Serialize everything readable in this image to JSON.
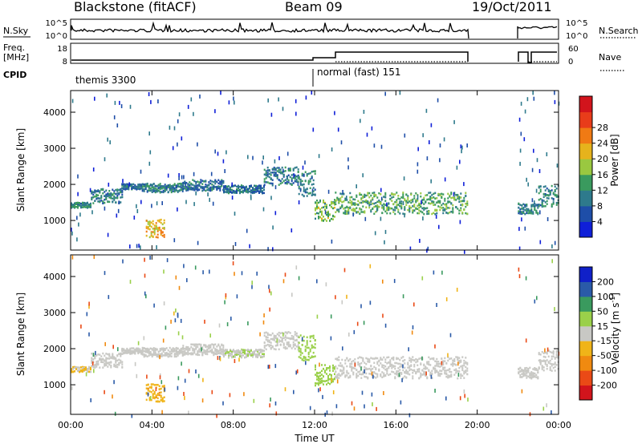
{
  "header": {
    "station": "Blackstone (fitACF)",
    "beam": "Beam 09",
    "date": "19/Oct/2011"
  },
  "side_labels": {
    "nsky": "N.Sky",
    "freq_line1": "Freq.",
    "freq_line2": "[MHz]",
    "cpid": "CPID",
    "nsearch": "N.Search",
    "nave": "Nave"
  },
  "small_axes": {
    "noise_left_ticks": [
      "10^5",
      "10^0"
    ],
    "noise_right_ticks": [
      "10^5",
      "10^0"
    ],
    "freq_left_ticks": [
      "18",
      "8"
    ],
    "freq_right_ticks": [
      "60",
      "0"
    ]
  },
  "cpid_labels": [
    {
      "text": "themis 3300",
      "start_hour": 0.0
    },
    {
      "text": "normal (fast) 151",
      "start_hour": 12.0
    }
  ],
  "colors": {
    "power": [
      "#0f1fd8",
      "#1e4ea8",
      "#2e7a8c",
      "#3a9a5e",
      "#9ac840",
      "#e6b31c",
      "#f07a14",
      "#e83c1a",
      "#d2141c"
    ],
    "velocity": [
      "#d2141c",
      "#ea4a16",
      "#f08a10",
      "#f0b418",
      "#c8c8c4",
      "#9ad04a",
      "#3a9a5e",
      "#2a5aa8",
      "#1020c8"
    ]
  },
  "chart_data": [
    {
      "type": "heatmap",
      "name": "power",
      "xlabel": "",
      "ylabel": "Slant Range [km]",
      "x_range_hours": [
        0,
        24
      ],
      "ylim": [
        180,
        4600
      ],
      "y_ticks": [
        "1000",
        "2000",
        "3000",
        "4000"
      ],
      "colorbar": {
        "label": "Power [dB]",
        "ticks": [
          "4",
          "8",
          "12",
          "16",
          "20",
          "24",
          "28"
        ],
        "range": [
          0,
          32
        ]
      },
      "scatter_bands": [
        {
          "from_hour": 0.0,
          "to_hour": 1.0,
          "range_km": [
            1380,
            1520
          ],
          "value": 10
        },
        {
          "from_hour": 1.0,
          "to_hour": 2.5,
          "range_km": [
            1500,
            1900
          ],
          "value": 9
        },
        {
          "from_hour": 2.5,
          "to_hour": 3.5,
          "range_km": [
            1880,
            2040
          ],
          "value": 8
        },
        {
          "from_hour": 3.5,
          "to_hour": 5.5,
          "range_km": [
            1800,
            2050
          ],
          "value": 9
        },
        {
          "from_hour": 5.5,
          "to_hour": 7.5,
          "range_km": [
            1850,
            2150
          ],
          "value": 8
        },
        {
          "from_hour": 7.5,
          "to_hour": 9.5,
          "range_km": [
            1780,
            2000
          ],
          "value": 8
        },
        {
          "from_hour": 9.5,
          "to_hour": 11.2,
          "range_km": [
            2000,
            2500
          ],
          "value": 9
        },
        {
          "from_hour": 11.2,
          "to_hour": 12.0,
          "range_km": [
            1700,
            2400
          ],
          "value": 10
        },
        {
          "from_hour": 12.0,
          "to_hour": 13.0,
          "range_km": [
            1000,
            1600
          ],
          "value": 14
        },
        {
          "from_hour": 13.0,
          "to_hour": 19.5,
          "range_km": [
            1200,
            1800
          ],
          "value": 13
        },
        {
          "from_hour": 22.0,
          "to_hour": 23.0,
          "range_km": [
            1200,
            1500
          ],
          "value": 10
        },
        {
          "from_hour": 23.0,
          "to_hour": 24.0,
          "range_km": [
            1400,
            2000
          ],
          "value": 10
        },
        {
          "from_hour": 3.7,
          "to_hour": 4.6,
          "range_km": [
            550,
            1050
          ],
          "value": 20
        }
      ]
    },
    {
      "type": "heatmap",
      "name": "velocity",
      "xlabel": "Time UT",
      "ylabel": "Slant Range [km]",
      "x_range_hours": [
        0,
        24
      ],
      "x_ticks": [
        "00:00",
        "04:00",
        "08:00",
        "12:00",
        "16:00",
        "20:00",
        "00:00"
      ],
      "ylim": [
        180,
        4600
      ],
      "y_ticks": [
        "1000",
        "2000",
        "3000",
        "4000"
      ],
      "colorbar": {
        "label": "Velocity [m s^-1]",
        "label_main": "Velocity [m s",
        "label_sup": "-1",
        "label_end": "]",
        "ticks": [
          "-200",
          "-100",
          "-50",
          "-15",
          "15",
          "50",
          "100",
          "200"
        ]
      },
      "scatter_bands": [
        {
          "from_hour": 0.0,
          "to_hour": 1.0,
          "range_km": [
            1380,
            1520
          ],
          "value": -20
        },
        {
          "from_hour": 1.0,
          "to_hour": 2.5,
          "range_km": [
            1500,
            1900
          ],
          "value": 0
        },
        {
          "from_hour": 2.5,
          "to_hour": 3.5,
          "range_km": [
            1880,
            2040
          ],
          "value": 0
        },
        {
          "from_hour": 3.5,
          "to_hour": 5.5,
          "range_km": [
            1800,
            2050
          ],
          "value": 0
        },
        {
          "from_hour": 5.5,
          "to_hour": 7.5,
          "range_km": [
            1850,
            2150
          ],
          "value": 0
        },
        {
          "from_hour": 7.5,
          "to_hour": 9.5,
          "range_km": [
            1780,
            2000
          ],
          "value": 10
        },
        {
          "from_hour": 9.5,
          "to_hour": 11.2,
          "range_km": [
            2000,
            2500
          ],
          "value": 0
        },
        {
          "from_hour": 11.2,
          "to_hour": 12.0,
          "range_km": [
            1700,
            2400
          ],
          "value": 30
        },
        {
          "from_hour": 12.0,
          "to_hour": 13.0,
          "range_km": [
            1000,
            1600
          ],
          "value": 30
        },
        {
          "from_hour": 13.0,
          "to_hour": 19.5,
          "range_km": [
            1200,
            1800
          ],
          "value": 0
        },
        {
          "from_hour": 22.0,
          "to_hour": 23.0,
          "range_km": [
            1200,
            1500
          ],
          "value": 0
        },
        {
          "from_hour": 23.0,
          "to_hour": 24.0,
          "range_km": [
            1400,
            2000
          ],
          "value": 0
        },
        {
          "from_hour": 3.7,
          "to_hour": 4.6,
          "range_km": [
            550,
            1050
          ],
          "value": -40
        }
      ]
    }
  ]
}
